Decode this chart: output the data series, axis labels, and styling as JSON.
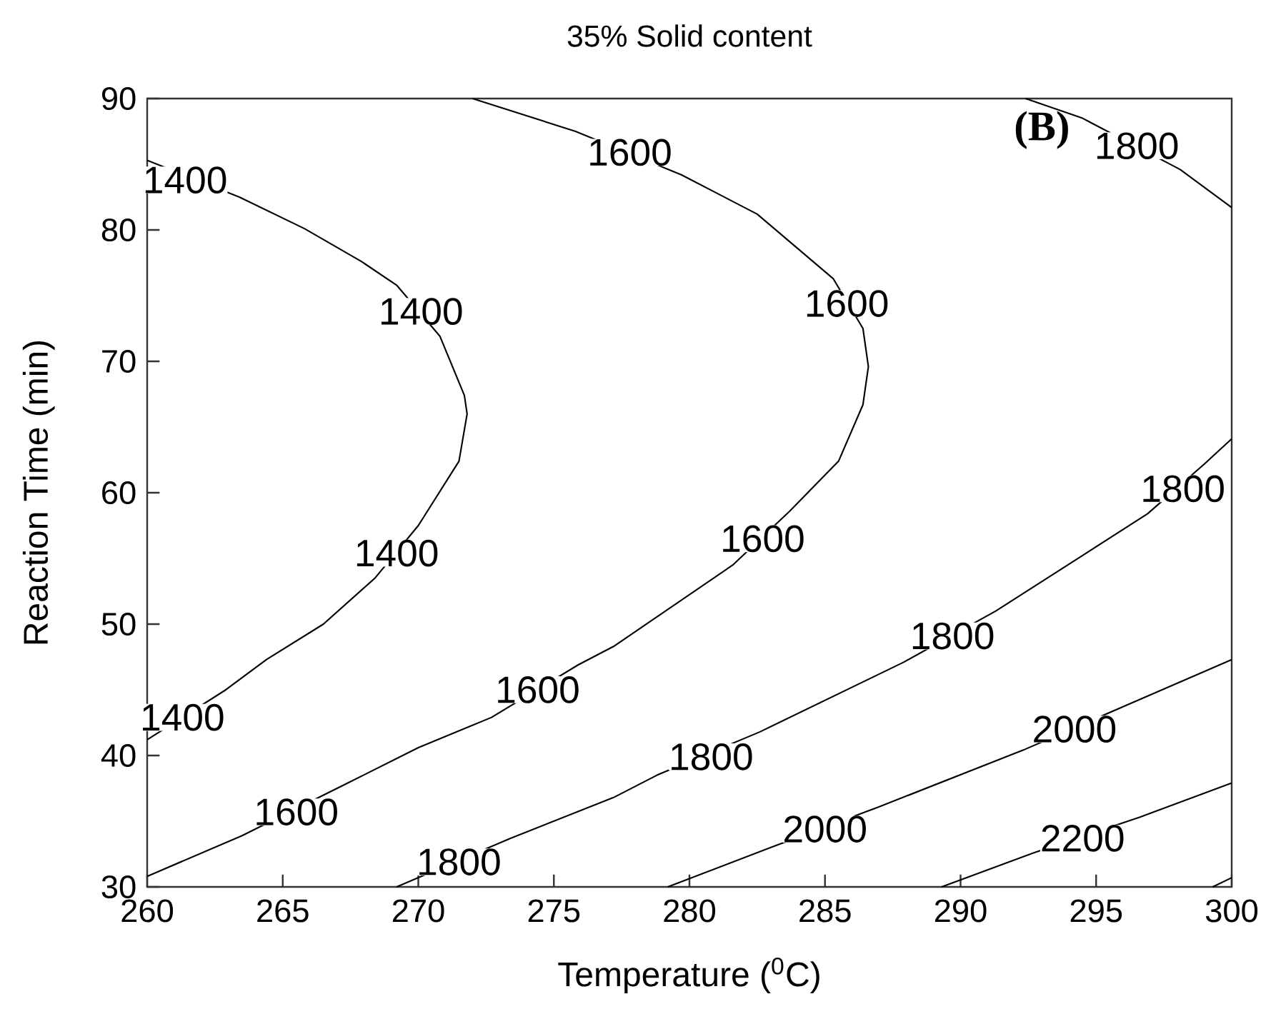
{
  "chart_data": {
    "type": "line",
    "title": "35% Solid content",
    "xlabel": "Temperature ($^{0}$C)",
    "ylabel": "Reaction Time (min)",
    "xlim": [
      260,
      300
    ],
    "ylim": [
      30,
      90
    ],
    "xticks": [
      260,
      265,
      270,
      275,
      280,
      285,
      290,
      295,
      300
    ],
    "yticks": [
      30,
      40,
      50,
      60,
      70,
      80,
      90
    ],
    "series": [
      {
        "color": "#000000",
        "x": [
          260,
          263.4,
          265.8,
          267.9,
          269.2,
          270.8,
          271.7,
          271.8,
          271.5,
          270.0,
          268.4,
          266.5,
          264.4,
          262.9,
          260
        ],
        "values": [
          85.3,
          82.5,
          80.1,
          77.6,
          75.8,
          71.9,
          67.4,
          66.0,
          62.4,
          57.5,
          53.5,
          50.0,
          47.3,
          45.0,
          41.2
        ]
      },
      {
        "color": "#000000",
        "x": [
          272.0,
          275.8,
          279.7,
          282.5,
          285.3,
          286.4,
          286.6,
          286.4,
          285.5,
          283.7,
          281.6,
          277.2,
          275.9,
          272.7,
          270.0,
          267.2,
          263.5,
          260
        ],
        "values": [
          90,
          87.5,
          84.2,
          81.2,
          76.3,
          72.5,
          69.6,
          66.7,
          62.4,
          58.6,
          54.5,
          48.3,
          46.9,
          42.9,
          40.6,
          37.7,
          33.9,
          30.8
        ]
      },
      {
        "color": "#000000",
        "x": [
          292.4,
          294.5,
          298.1,
          300
        ],
        "values": [
          90,
          88.5,
          84.6,
          81.7
        ]
      },
      {
        "color": "#000000",
        "x": [
          300,
          299.0,
          296.9,
          291.3,
          287.9,
          282.6,
          278.8,
          277.2,
          273.4,
          269.2
        ],
        "values": [
          64.1,
          62.2,
          58.4,
          51.0,
          47.1,
          41.8,
          38.5,
          36.8,
          33.7,
          30
        ]
      },
      {
        "color": "#000000",
        "x": [
          300,
          296.2,
          292.3,
          287.0,
          283.0,
          279.2
        ],
        "values": [
          47.3,
          43.9,
          40.4,
          36.1,
          33.0,
          30
        ]
      },
      {
        "color": "#000000",
        "x": [
          300,
          296.6,
          292.7,
          289.3
        ],
        "values": [
          37.9,
          35.3,
          32.6,
          30
        ]
      },
      {
        "color": "#000000",
        "x": [
          300,
          299.3
        ],
        "values": [
          30.7,
          30
        ]
      }
    ],
    "annotations": [
      {
        "text": "1400",
        "x": 261.4,
        "y": 83.8
      },
      {
        "text": "1400",
        "x": 270.1,
        "y": 73.8
      },
      {
        "text": "1400",
        "x": 269.2,
        "y": 55.4
      },
      {
        "text": "1400",
        "x": 261.3,
        "y": 42.9
      },
      {
        "text": "1600",
        "x": 277.8,
        "y": 85.9
      },
      {
        "text": "1600",
        "x": 285.8,
        "y": 74.4
      },
      {
        "text": "1600",
        "x": 282.7,
        "y": 56.5
      },
      {
        "text": "1600",
        "x": 274.4,
        "y": 45.0
      },
      {
        "text": "1600",
        "x": 265.5,
        "y": 35.7
      },
      {
        "text": "1800",
        "x": 296.5,
        "y": 86.4
      },
      {
        "text": "1800",
        "x": 298.2,
        "y": 60.3
      },
      {
        "text": "1800",
        "x": 289.7,
        "y": 49.1
      },
      {
        "text": "1800",
        "x": 280.8,
        "y": 39.9
      },
      {
        "text": "1800",
        "x": 271.5,
        "y": 31.9
      },
      {
        "text": "2000",
        "x": 294.2,
        "y": 42.0
      },
      {
        "text": "2000",
        "x": 285.0,
        "y": 34.4
      },
      {
        "text": "2200",
        "x": 294.5,
        "y": 33.7
      },
      "(B)"
    ]
  }
}
